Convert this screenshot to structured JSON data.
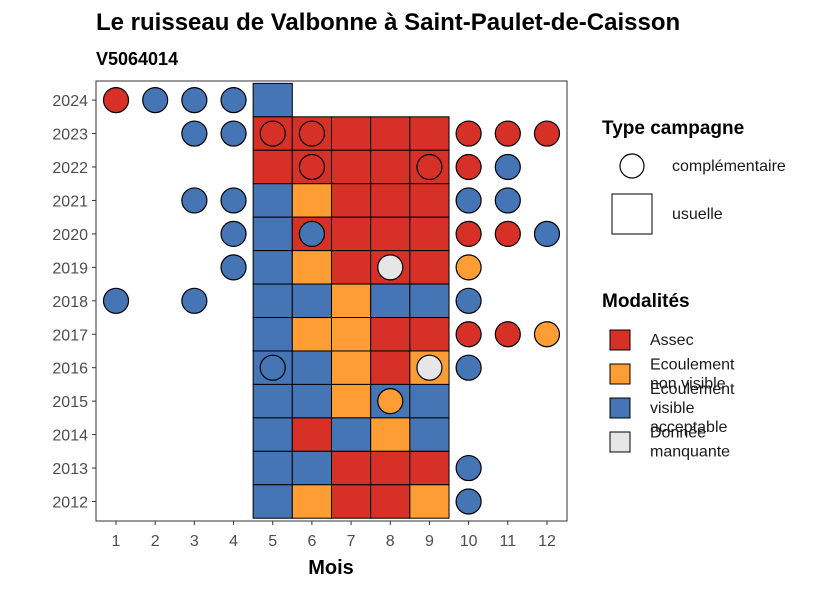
{
  "chart_data": {
    "type": "heatmap",
    "title": "Le ruisseau de Valbonne à Saint-Paulet-de-Caisson",
    "subtitle": "V5064014",
    "xlabel": "Mois",
    "ylabel": "",
    "x": [
      1,
      2,
      3,
      4,
      5,
      6,
      7,
      8,
      9,
      10,
      11,
      12
    ],
    "y": [
      2012,
      2013,
      2014,
      2015,
      2016,
      2017,
      2018,
      2019,
      2020,
      2021,
      2022,
      2023,
      2024
    ],
    "xlim": [
      1,
      12
    ],
    "ylim": [
      2012,
      2024
    ],
    "grid": false,
    "legend_placement": "right",
    "legend_shape": {
      "title": "Type campagne",
      "items": [
        {
          "key": "complementaire",
          "label": "complémentaire",
          "shape": "circle"
        },
        {
          "key": "usuelle",
          "label": "usuelle",
          "shape": "square"
        }
      ]
    },
    "legend_fill": {
      "title": "Modalités",
      "items": [
        {
          "key": "assec",
          "label_lines": [
            "Assec"
          ],
          "color": "#d73027"
        },
        {
          "key": "ecoulement_non_visible",
          "label_lines": [
            "Ecoulement",
            "non visible"
          ],
          "color": "#fd9d33"
        },
        {
          "key": "ecoulement_visible",
          "label_lines": [
            "Ecoulement",
            "visible",
            "acceptable"
          ],
          "color": "#4575b4"
        },
        {
          "key": "donnee_manquante",
          "label_lines": [
            "Donnée",
            "manquante"
          ],
          "color": "#e6e6e6"
        }
      ]
    },
    "points": [
      {
        "year": 2024,
        "month": 1,
        "campaign": "complementaire",
        "status": "assec"
      },
      {
        "year": 2024,
        "month": 2,
        "campaign": "complementaire",
        "status": "ecoulement_visible"
      },
      {
        "year": 2024,
        "month": 3,
        "campaign": "complementaire",
        "status": "ecoulement_visible"
      },
      {
        "year": 2024,
        "month": 4,
        "campaign": "complementaire",
        "status": "ecoulement_visible"
      },
      {
        "year": 2024,
        "month": 5,
        "campaign": "usuelle",
        "status": "ecoulement_visible"
      },
      {
        "year": 2023,
        "month": 3,
        "campaign": "complementaire",
        "status": "ecoulement_visible"
      },
      {
        "year": 2023,
        "month": 4,
        "campaign": "complementaire",
        "status": "ecoulement_visible"
      },
      {
        "year": 2023,
        "month": 5,
        "campaign": "usuelle",
        "status": "assec"
      },
      {
        "year": 2023,
        "month": 5,
        "campaign": "complementaire",
        "status": "assec"
      },
      {
        "year": 2023,
        "month": 6,
        "campaign": "usuelle",
        "status": "assec"
      },
      {
        "year": 2023,
        "month": 6,
        "campaign": "complementaire",
        "status": "assec"
      },
      {
        "year": 2023,
        "month": 7,
        "campaign": "usuelle",
        "status": "assec"
      },
      {
        "year": 2023,
        "month": 8,
        "campaign": "usuelle",
        "status": "assec"
      },
      {
        "year": 2023,
        "month": 9,
        "campaign": "usuelle",
        "status": "assec"
      },
      {
        "year": 2023,
        "month": 10,
        "campaign": "complementaire",
        "status": "assec"
      },
      {
        "year": 2023,
        "month": 11,
        "campaign": "complementaire",
        "status": "assec"
      },
      {
        "year": 2023,
        "month": 12,
        "campaign": "complementaire",
        "status": "assec"
      },
      {
        "year": 2022,
        "month": 5,
        "campaign": "usuelle",
        "status": "assec"
      },
      {
        "year": 2022,
        "month": 6,
        "campaign": "usuelle",
        "status": "assec"
      },
      {
        "year": 2022,
        "month": 6,
        "campaign": "complementaire",
        "status": "assec"
      },
      {
        "year": 2022,
        "month": 7,
        "campaign": "usuelle",
        "status": "assec"
      },
      {
        "year": 2022,
        "month": 8,
        "campaign": "usuelle",
        "status": "assec"
      },
      {
        "year": 2022,
        "month": 9,
        "campaign": "usuelle",
        "status": "assec"
      },
      {
        "year": 2022,
        "month": 9,
        "campaign": "complementaire",
        "status": "assec"
      },
      {
        "year": 2022,
        "month": 10,
        "campaign": "complementaire",
        "status": "assec"
      },
      {
        "year": 2022,
        "month": 11,
        "campaign": "complementaire",
        "status": "ecoulement_visible"
      },
      {
        "year": 2021,
        "month": 3,
        "campaign": "complementaire",
        "status": "ecoulement_visible"
      },
      {
        "year": 2021,
        "month": 4,
        "campaign": "complementaire",
        "status": "ecoulement_visible"
      },
      {
        "year": 2021,
        "month": 5,
        "campaign": "usuelle",
        "status": "ecoulement_visible"
      },
      {
        "year": 2021,
        "month": 6,
        "campaign": "usuelle",
        "status": "ecoulement_non_visible"
      },
      {
        "year": 2021,
        "month": 7,
        "campaign": "usuelle",
        "status": "assec"
      },
      {
        "year": 2021,
        "month": 8,
        "campaign": "usuelle",
        "status": "assec"
      },
      {
        "year": 2021,
        "month": 9,
        "campaign": "usuelle",
        "status": "assec"
      },
      {
        "year": 2021,
        "month": 10,
        "campaign": "complementaire",
        "status": "ecoulement_visible"
      },
      {
        "year": 2021,
        "month": 11,
        "campaign": "complementaire",
        "status": "ecoulement_visible"
      },
      {
        "year": 2020,
        "month": 4,
        "campaign": "complementaire",
        "status": "ecoulement_visible"
      },
      {
        "year": 2020,
        "month": 5,
        "campaign": "usuelle",
        "status": "ecoulement_visible"
      },
      {
        "year": 2020,
        "month": 6,
        "campaign": "usuelle",
        "status": "assec"
      },
      {
        "year": 2020,
        "month": 6,
        "campaign": "complementaire",
        "status": "ecoulement_visible"
      },
      {
        "year": 2020,
        "month": 7,
        "campaign": "usuelle",
        "status": "assec"
      },
      {
        "year": 2020,
        "month": 8,
        "campaign": "usuelle",
        "status": "assec"
      },
      {
        "year": 2020,
        "month": 9,
        "campaign": "usuelle",
        "status": "assec"
      },
      {
        "year": 2020,
        "month": 10,
        "campaign": "complementaire",
        "status": "assec"
      },
      {
        "year": 2020,
        "month": 11,
        "campaign": "complementaire",
        "status": "assec"
      },
      {
        "year": 2020,
        "month": 12,
        "campaign": "complementaire",
        "status": "ecoulement_visible"
      },
      {
        "year": 2019,
        "month": 4,
        "campaign": "complementaire",
        "status": "ecoulement_visible"
      },
      {
        "year": 2019,
        "month": 5,
        "campaign": "usuelle",
        "status": "ecoulement_visible"
      },
      {
        "year": 2019,
        "month": 6,
        "campaign": "usuelle",
        "status": "ecoulement_non_visible"
      },
      {
        "year": 2019,
        "month": 7,
        "campaign": "usuelle",
        "status": "assec"
      },
      {
        "year": 2019,
        "month": 8,
        "campaign": "usuelle",
        "status": "assec"
      },
      {
        "year": 2019,
        "month": 8,
        "campaign": "complementaire",
        "status": "donnee_manquante"
      },
      {
        "year": 2019,
        "month": 9,
        "campaign": "usuelle",
        "status": "assec"
      },
      {
        "year": 2019,
        "month": 10,
        "campaign": "complementaire",
        "status": "ecoulement_non_visible"
      },
      {
        "year": 2018,
        "month": 1,
        "campaign": "complementaire",
        "status": "ecoulement_visible"
      },
      {
        "year": 2018,
        "month": 3,
        "campaign": "complementaire",
        "status": "ecoulement_visible"
      },
      {
        "year": 2018,
        "month": 5,
        "campaign": "usuelle",
        "status": "ecoulement_visible"
      },
      {
        "year": 2018,
        "month": 6,
        "campaign": "usuelle",
        "status": "ecoulement_visible"
      },
      {
        "year": 2018,
        "month": 7,
        "campaign": "usuelle",
        "status": "ecoulement_non_visible"
      },
      {
        "year": 2018,
        "month": 8,
        "campaign": "usuelle",
        "status": "ecoulement_visible"
      },
      {
        "year": 2018,
        "month": 9,
        "campaign": "usuelle",
        "status": "ecoulement_visible"
      },
      {
        "year": 2018,
        "month": 10,
        "campaign": "complementaire",
        "status": "ecoulement_visible"
      },
      {
        "year": 2017,
        "month": 5,
        "campaign": "usuelle",
        "status": "ecoulement_visible"
      },
      {
        "year": 2017,
        "month": 6,
        "campaign": "usuelle",
        "status": "ecoulement_non_visible"
      },
      {
        "year": 2017,
        "month": 7,
        "campaign": "usuelle",
        "status": "ecoulement_non_visible"
      },
      {
        "year": 2017,
        "month": 8,
        "campaign": "usuelle",
        "status": "assec"
      },
      {
        "year": 2017,
        "month": 9,
        "campaign": "usuelle",
        "status": "assec"
      },
      {
        "year": 2017,
        "month": 10,
        "campaign": "complementaire",
        "status": "assec"
      },
      {
        "year": 2017,
        "month": 11,
        "campaign": "complementaire",
        "status": "assec"
      },
      {
        "year": 2017,
        "month": 12,
        "campaign": "complementaire",
        "status": "ecoulement_non_visible"
      },
      {
        "year": 2016,
        "month": 5,
        "campaign": "usuelle",
        "status": "ecoulement_visible"
      },
      {
        "year": 2016,
        "month": 5,
        "campaign": "complementaire",
        "status": "ecoulement_visible"
      },
      {
        "year": 2016,
        "month": 6,
        "campaign": "usuelle",
        "status": "ecoulement_visible"
      },
      {
        "year": 2016,
        "month": 7,
        "campaign": "usuelle",
        "status": "ecoulement_non_visible"
      },
      {
        "year": 2016,
        "month": 8,
        "campaign": "usuelle",
        "status": "assec"
      },
      {
        "year": 2016,
        "month": 9,
        "campaign": "usuelle",
        "status": "ecoulement_non_visible"
      },
      {
        "year": 2016,
        "month": 9,
        "campaign": "complementaire",
        "status": "donnee_manquante"
      },
      {
        "year": 2016,
        "month": 10,
        "campaign": "complementaire",
        "status": "ecoulement_visible"
      },
      {
        "year": 2015,
        "month": 5,
        "campaign": "usuelle",
        "status": "ecoulement_visible"
      },
      {
        "year": 2015,
        "month": 6,
        "campaign": "usuelle",
        "status": "ecoulement_visible"
      },
      {
        "year": 2015,
        "month": 7,
        "campaign": "usuelle",
        "status": "ecoulement_non_visible"
      },
      {
        "year": 2015,
        "month": 8,
        "campaign": "usuelle",
        "status": "ecoulement_visible"
      },
      {
        "year": 2015,
        "month": 8,
        "campaign": "complementaire",
        "status": "ecoulement_non_visible"
      },
      {
        "year": 2015,
        "month": 9,
        "campaign": "usuelle",
        "status": "ecoulement_visible"
      },
      {
        "year": 2014,
        "month": 5,
        "campaign": "usuelle",
        "status": "ecoulement_visible"
      },
      {
        "year": 2014,
        "month": 6,
        "campaign": "usuelle",
        "status": "assec"
      },
      {
        "year": 2014,
        "month": 7,
        "campaign": "usuelle",
        "status": "ecoulement_visible"
      },
      {
        "year": 2014,
        "month": 8,
        "campaign": "usuelle",
        "status": "ecoulement_non_visible"
      },
      {
        "year": 2014,
        "month": 9,
        "campaign": "usuelle",
        "status": "ecoulement_visible"
      },
      {
        "year": 2013,
        "month": 5,
        "campaign": "usuelle",
        "status": "ecoulement_visible"
      },
      {
        "year": 2013,
        "month": 6,
        "campaign": "usuelle",
        "status": "ecoulement_visible"
      },
      {
        "year": 2013,
        "month": 7,
        "campaign": "usuelle",
        "status": "assec"
      },
      {
        "year": 2013,
        "month": 8,
        "campaign": "usuelle",
        "status": "assec"
      },
      {
        "year": 2013,
        "month": 9,
        "campaign": "usuelle",
        "status": "assec"
      },
      {
        "year": 2013,
        "month": 10,
        "campaign": "complementaire",
        "status": "ecoulement_visible"
      },
      {
        "year": 2012,
        "month": 5,
        "campaign": "usuelle",
        "status": "ecoulement_visible"
      },
      {
        "year": 2012,
        "month": 6,
        "campaign": "usuelle",
        "status": "ecoulement_non_visible"
      },
      {
        "year": 2012,
        "month": 7,
        "campaign": "usuelle",
        "status": "assec"
      },
      {
        "year": 2012,
        "month": 8,
        "campaign": "usuelle",
        "status": "assec"
      },
      {
        "year": 2012,
        "month": 9,
        "campaign": "usuelle",
        "status": "ecoulement_non_visible"
      },
      {
        "year": 2012,
        "month": 10,
        "campaign": "complementaire",
        "status": "ecoulement_visible"
      }
    ]
  }
}
